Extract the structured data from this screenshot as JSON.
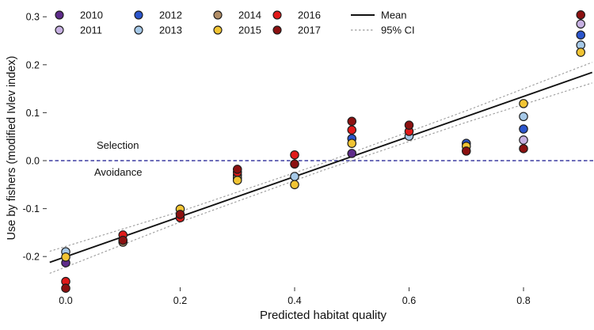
{
  "figure": {
    "x_axis": {
      "label": "Predicted habitat quality",
      "ticks": [
        "0.0",
        "0.2",
        "0.4",
        "0.6",
        "0.8"
      ],
      "tick_values": [
        0.0,
        0.2,
        0.4,
        0.6,
        0.8
      ]
    },
    "y_axis": {
      "label": "Use by fishers (modified Ivlev index)",
      "ticks": [
        "0.3",
        "0.2",
        "0.1",
        "0.0",
        "-0.1",
        "-0.2"
      ],
      "tick_values": [
        0.3,
        0.2,
        0.1,
        0.0,
        -0.1,
        -0.2
      ]
    },
    "annotations": {
      "selection": "Selection",
      "avoidance": "Avoidance"
    }
  },
  "legend": {
    "years": [
      {
        "label": "2010",
        "color": "#5e2b8a"
      },
      {
        "label": "2011",
        "color": "#c7b1e2"
      },
      {
        "label": "2012",
        "color": "#2b55cc"
      },
      {
        "label": "2013",
        "color": "#a6c9e8"
      },
      {
        "label": "2014",
        "color": "#b18d66"
      },
      {
        "label": "2015",
        "color": "#f1c433"
      },
      {
        "label": "2016",
        "color": "#e11a1a"
      },
      {
        "label": "2017",
        "color": "#8c1111"
      }
    ],
    "lines": [
      {
        "label": "Mean",
        "style": "solid",
        "color": "#111111"
      },
      {
        "label": "95% CI",
        "style": "dashed",
        "color": "#9a9a9a"
      }
    ]
  },
  "chart_data": {
    "type": "scatter",
    "title": "",
    "xlabel": "Predicted habitat quality",
    "ylabel": "Use by fishers (modified Ivlev index)",
    "xlim": [
      -0.05,
      0.93
    ],
    "ylim": [
      -0.29,
      0.32
    ],
    "grid": false,
    "legend_position": "top",
    "series": [
      {
        "name": "2010",
        "color": "#5e2b8a",
        "points": [
          [
            0.0,
            -0.213
          ],
          [
            0.5,
            0.015
          ]
        ]
      },
      {
        "name": "2011",
        "color": "#c7b1e2",
        "points": [
          [
            0.8,
            0.043
          ],
          [
            0.9,
            0.285
          ]
        ]
      },
      {
        "name": "2012",
        "color": "#2b55cc",
        "points": [
          [
            0.3,
            -0.03
          ],
          [
            0.5,
            0.046
          ],
          [
            0.7,
            0.036
          ],
          [
            0.8,
            0.066
          ],
          [
            0.9,
            0.262
          ]
        ]
      },
      {
        "name": "2013",
        "color": "#a6c9e8",
        "points": [
          [
            0.0,
            -0.19
          ],
          [
            0.4,
            -0.033
          ],
          [
            0.6,
            0.051
          ],
          [
            0.8,
            0.092
          ],
          [
            0.9,
            0.241
          ]
        ]
      },
      {
        "name": "2014",
        "color": "#b18d66",
        "points": [
          [
            0.1,
            -0.17
          ],
          [
            0.3,
            -0.036
          ]
        ]
      },
      {
        "name": "2015",
        "color": "#f1c433",
        "points": [
          [
            0.0,
            -0.201
          ],
          [
            0.2,
            -0.101
          ],
          [
            0.3,
            -0.041
          ],
          [
            0.4,
            -0.05
          ],
          [
            0.5,
            0.036
          ],
          [
            0.7,
            0.03
          ],
          [
            0.8,
            0.119
          ],
          [
            0.9,
            0.226
          ]
        ]
      },
      {
        "name": "2016",
        "color": "#e11a1a",
        "points": [
          [
            0.0,
            -0.252
          ],
          [
            0.1,
            -0.155
          ],
          [
            0.2,
            -0.119
          ],
          [
            0.3,
            -0.024
          ],
          [
            0.4,
            0.012
          ],
          [
            0.5,
            0.064
          ],
          [
            0.6,
            0.061
          ]
        ]
      },
      {
        "name": "2017",
        "color": "#8c1111",
        "points": [
          [
            0.0,
            -0.266
          ],
          [
            0.1,
            -0.166
          ],
          [
            0.2,
            -0.112
          ],
          [
            0.3,
            -0.018
          ],
          [
            0.4,
            -0.007
          ],
          [
            0.5,
            0.082
          ],
          [
            0.6,
            0.074
          ],
          [
            0.7,
            0.02
          ],
          [
            0.8,
            0.025
          ],
          [
            0.9,
            0.304
          ]
        ]
      }
    ],
    "mean_line": {
      "label": "Mean",
      "color": "#111111",
      "points": [
        [
          -0.028,
          -0.212
        ],
        [
          0.92,
          0.184
        ]
      ]
    },
    "ci_upper": {
      "label": "95% CI upper",
      "color": "#9a9a9a",
      "points": [
        [
          -0.028,
          -0.189
        ],
        [
          0.2,
          -0.106
        ],
        [
          0.45,
          -0.005
        ],
        [
          0.7,
          0.104
        ],
        [
          0.92,
          0.205
        ]
      ]
    },
    "ci_lower": {
      "label": "95% CI lower",
      "color": "#9a9a9a",
      "points": [
        [
          -0.028,
          -0.235
        ],
        [
          0.2,
          -0.128
        ],
        [
          0.45,
          -0.02
        ],
        [
          0.7,
          0.08
        ],
        [
          0.92,
          0.162
        ]
      ]
    },
    "zero_line": {
      "y": 0.0,
      "color": "#3b3ba0",
      "label_above": "Selection",
      "label_below": "Avoidance"
    }
  }
}
